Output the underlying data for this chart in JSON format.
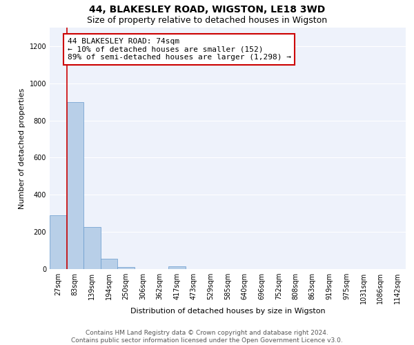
{
  "title1": "44, BLAKESLEY ROAD, WIGSTON, LE18 3WD",
  "title2": "Size of property relative to detached houses in Wigston",
  "xlabel": "Distribution of detached houses by size in Wigston",
  "ylabel": "Number of detached properties",
  "categories": [
    "27sqm",
    "83sqm",
    "139sqm",
    "194sqm",
    "250sqm",
    "306sqm",
    "362sqm",
    "417sqm",
    "473sqm",
    "529sqm",
    "585sqm",
    "640sqm",
    "696sqm",
    "752sqm",
    "808sqm",
    "863sqm",
    "919sqm",
    "975sqm",
    "1031sqm",
    "1086sqm",
    "1142sqm"
  ],
  "values": [
    290,
    900,
    225,
    55,
    12,
    0,
    0,
    15,
    0,
    0,
    0,
    0,
    0,
    0,
    0,
    0,
    0,
    0,
    0,
    0,
    0
  ],
  "bar_color": "#b8cfe8",
  "bar_edge_color": "#6699cc",
  "red_line_x": 0.5,
  "annotation_line_color": "#cc0000",
  "annotation_box_text": "44 BLAKESLEY ROAD: 74sqm\n← 10% of detached houses are smaller (152)\n89% of semi-detached houses are larger (1,298) →",
  "ylim": [
    0,
    1300
  ],
  "yticks": [
    0,
    200,
    400,
    600,
    800,
    1000,
    1200
  ],
  "background_color": "#eef2fb",
  "grid_color": "#ffffff",
  "footer_line1": "Contains HM Land Registry data © Crown copyright and database right 2024.",
  "footer_line2": "Contains public sector information licensed under the Open Government Licence v3.0.",
  "title1_fontsize": 10,
  "title2_fontsize": 9,
  "annotation_fontsize": 8,
  "axis_label_fontsize": 8,
  "tick_fontsize": 7,
  "footer_fontsize": 6.5
}
